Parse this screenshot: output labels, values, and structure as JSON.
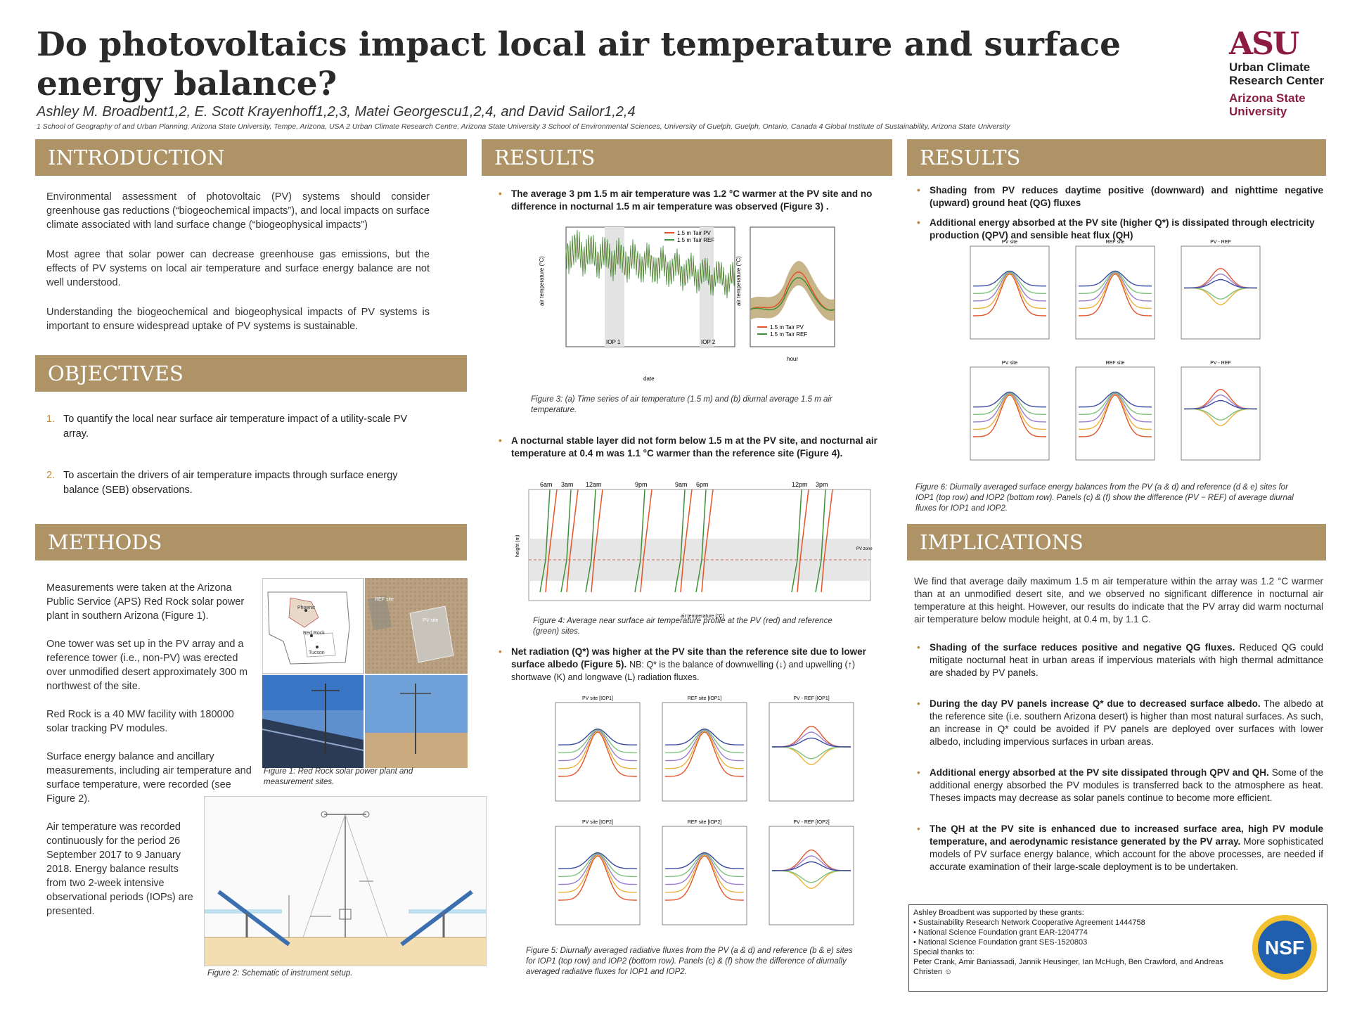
{
  "header": {
    "title": "Do photovoltaics impact local air temperature and surface energy balance?",
    "authors": "Ashley M. Broadbent1,2, E. Scott Krayenhoff1,2,3, Matei Georgescu1,2,4, and David Sailor1,2,4",
    "affiliations": "1 School of Geography of and Urban Planning, Arizona State University, Tempe, Arizona, USA 2 Urban Climate Research Centre, Arizona State University 3 School of Environmental Sciences, University of Guelph, Guelph, Ontario, Canada 4 Global Institute of Sustainability, Arizona State University"
  },
  "logo": {
    "mark": "ASU",
    "line1": "Urban Climate",
    "line2": "Research Center",
    "line3": "Arizona State",
    "line4": "University"
  },
  "introduction": {
    "heading": "INTRODUCTION",
    "p1": "Environmental assessment of photovoltaic (PV) systems should consider greenhouse gas reductions (“biogeochemical impacts”), and local impacts on surface climate associated with land surface change (“biogeophysical impacts”)",
    "p2": "Most agree that solar power can decrease greenhouse gas emissions, but the effects of PV systems on local air temperature and surface energy balance are not well understood.",
    "p3": "Understanding the biogeochemical and biogeophysical impacts of PV systems is important to ensure widespread uptake of PV systems is sustainable."
  },
  "objectives": {
    "heading": "OBJECTIVES",
    "items": [
      {
        "num": "1.",
        "text": "To quantify the local near surface air temperature impact of a utility-scale PV array."
      },
      {
        "num": "2.",
        "text": "To ascertain the drivers of air temperature impacts through surface energy balance (SEB) observations."
      }
    ]
  },
  "methods": {
    "heading": "METHODS",
    "p1": "Measurements were taken at the Arizona Public Service (APS) Red Rock solar power plant in southern Arizona (Figure 1).",
    "p2": "One tower was set up in the PV array and a reference tower (i.e., non-PV) was erected over unmodified desert approximately 300 m northwest of the site.",
    "p3": "Red Rock is a 40 MW facility with 180000 solar tracking PV modules.",
    "p4": "Surface energy balance and ancillary measurements, including air temperature and surface temperature, were recorded (see Figure 2).",
    "p5": "Air temperature was recorded continuously for the period 26 September 2017 to 9 January 2018. Energy balance results from two 2-week intensive observational periods (IOPs) are presented.",
    "fig1_caption": "Figure 1: Red Rock solar power plant and measurement sites.",
    "fig1_map_labels": [
      "Phoenix",
      "Red Rock",
      "Tucson"
    ],
    "fig1_site_labels": [
      "REF site",
      "PV site"
    ],
    "fig2_caption": "Figure 2: Schematic of instrument setup."
  },
  "results1": {
    "heading": "RESULTS",
    "bullet1": "The average 3 pm 1.5 m air temperature was 1.2 °C warmer at the PV site and no difference in nocturnal 1.5 m air temperature was observed (Figure 3) .",
    "fig3_caption": "Figure 3: (a) Time series of air temperature (1.5 m) and (b) diurnal average 1.5 m air temperature.",
    "fig3_legend": [
      "1.5 m Tair PV",
      "1.5 m Tair REF"
    ],
    "fig3_ylabel": "air temperature (°C)",
    "fig3_xlabel_a": "date",
    "fig3_xlabel_b": "hour",
    "fig3_iop_labels": [
      "IOP 1",
      "IOP 2"
    ],
    "bullet2": "A nocturnal stable layer did not form below 1.5 m at the PV site, and nocturnal air temperature at 0.4 m was 1.1 °C warmer than the reference site (Figure 4).",
    "fig4_time_labels": [
      "6am",
      "3am",
      "12am",
      "9pm",
      "9am",
      "6pm",
      "12pm",
      "3pm"
    ],
    "fig4_xlabel": "air temperature (°C)",
    "fig4_ylabel": "height (m)",
    "fig4_zone_label": "PV zone",
    "fig4_caption": "Figure 4: Average near surface air temperature profile at the PV (red) and reference (green) sites.",
    "bullet3": "Net radiation (Q*) was higher at the PV site than the reference site due to lower surface albedo (Figure 5).",
    "bullet3_note": "NB: Q* is the balance of downwelling (↓) and upwelling (↑) shortwave (K) and longwave (L) radiation fluxes.",
    "fig5_panel_titles": [
      "PV site [IOP1]",
      "REF site [IOP1]",
      "PV - REF [IOP1]",
      "PV site [IOP2]",
      "REF site [IOP2]",
      "PV - REF [IOP2]"
    ],
    "fig5_caption": "Figure 5: Diurnally averaged radiative fluxes from the PV (a & d) and reference (b & e) sites for IOP1 (top row) and IOP2 (bottom row). Panels (c) & (f) show the difference of diurnally averaged radiative fluxes for IOP1 and IOP2."
  },
  "results2": {
    "heading": "RESULTS",
    "bullet1": "Shading from PV reduces daytime positive (downward) and nighttime negative (upward) ground heat (QG) fluxes",
    "bullet2": "Additional energy absorbed at the PV site (higher Q*) is dissipated through electricity production (QPV) and sensible heat flux (QH)",
    "fig6_panel_titles": [
      "PV site",
      "REF site",
      "PV - REF",
      "PV site",
      "REF site",
      "PV - REF"
    ],
    "fig6_caption": "Figure 6: Diurnally averaged surface energy balances from the PV (a & d) and reference (d & e) sites for IOP1 (top row) and IOP2 (bottom row). Panels (c) & (f) show the difference (PV − REF) of average diurnal fluxes for IOP1 and IOP2."
  },
  "implications": {
    "heading": "IMPLICATIONS",
    "p1": "We find that average daily maximum 1.5 m air temperature within the array was 1.2 °C warmer than at an unmodified desert site, and we observed no significant difference in nocturnal air temperature at this height. However, our results do indicate that the PV array did warm nocturnal air temperature below module height, at 0.4 m, by 1.1 C.",
    "b1_bold": "Shading of the surface reduces positive and negative QG fluxes.",
    "b1_text": " Reduced QG could mitigate nocturnal heat in urban areas if impervious materials with high thermal admittance are shaded by PV panels.",
    "b2_bold": "During the day PV panels increase Q* due to decreased surface albedo.",
    "b2_text": " The albedo at the reference site (i.e. southern Arizona desert) is higher than most natural surfaces. As such, an increase in Q* could be avoided if PV panels are deployed over surfaces with lower albedo, including impervious surfaces in urban areas.",
    "b3_bold": "Additional energy absorbed at the PV site dissipated through QPV and QH.",
    "b3_text": " Some of the additional energy absorbed the PV modules is transferred back to the atmosphere as heat. Theses impacts may decrease as solar panels continue to become more efficient.",
    "b4_bold": "The QH at the PV site is enhanced due to increased surface area, high PV module temperature, and aerodynamic resistance generated by the PV array.",
    "b4_text": " More sophisticated models of PV surface energy balance, which account for the above processes, are needed if accurate examination of their large-scale deployment is to be undertaken."
  },
  "acknowledgements": {
    "intro": "Ashley Broadbent was supported by these grants:",
    "grants": [
      "Sustainability Research Network Cooperative Agreement 1444758",
      "National Science Foundation grant EAR-1204774",
      "National Science Foundation grant SES-1520803"
    ],
    "thanks_label": "Special thanks to:",
    "thanks": "Peter Crank, Amir Baniassadi, Jannik Heusinger, Ian McHugh, Ben Crawford, and Andreas Christen ☺",
    "nsf": "NSF"
  },
  "colors": {
    "section_bar": "#ae9367",
    "asu_maroon": "#8c1d40",
    "pv_red": "#e4542a",
    "ref_green": "#3f8f3a",
    "bullet": "#c0883b"
  }
}
